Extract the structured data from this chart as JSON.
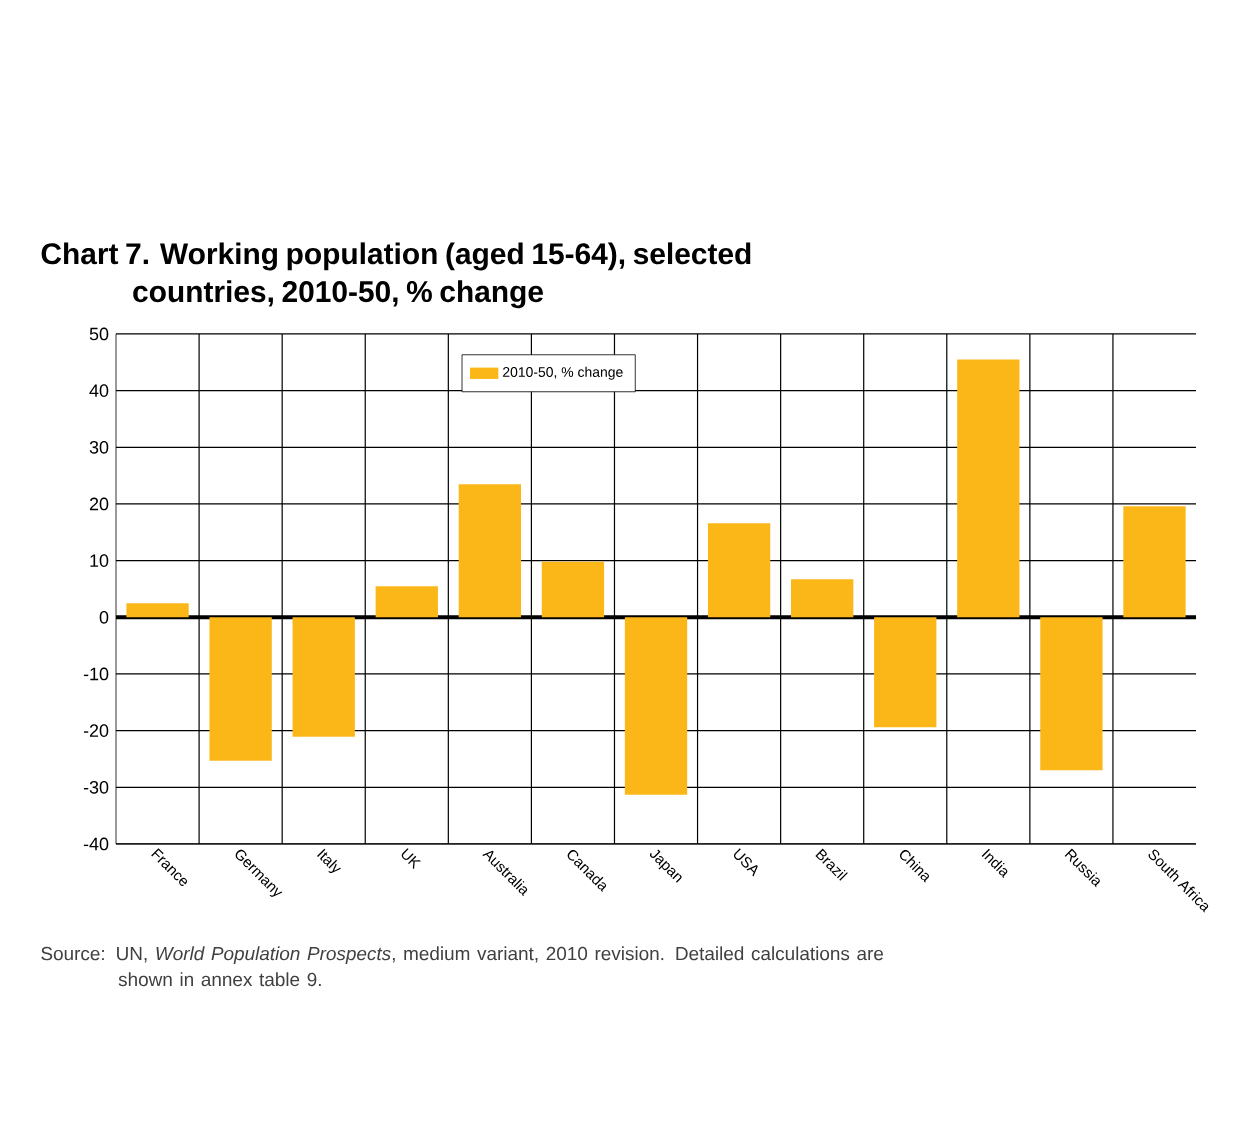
{
  "chart_data": {
    "type": "bar",
    "title": "Chart 7.  Working population (aged 15-64), selected countries, 2010-50, % change",
    "categories": [
      "France",
      "Germany",
      "Italy",
      "UK",
      "Australia",
      "Canada",
      "Japan",
      "USA",
      "Brazil",
      "China",
      "India",
      "Russia",
      "South Africa"
    ],
    "series": [
      {
        "name": "2010-50, % change",
        "color": "#fbb718",
        "values": [
          2.5,
          -25.3,
          -21.1,
          5.5,
          23.5,
          9.8,
          -31.3,
          16.6,
          6.7,
          -19.4,
          45.5,
          -27.0,
          19.6
        ]
      }
    ],
    "ylim": [
      -40,
      50
    ],
    "yticks": [
      -40,
      -30,
      -20,
      -10,
      0,
      10,
      20,
      30,
      40,
      50
    ],
    "grid": true,
    "legend": "top",
    "annotations": [
      "Source: UN, *World Population Prospects*, medium variant, 2010 revision. Detailed calculations are shown in annex table 9."
    ]
  }
}
